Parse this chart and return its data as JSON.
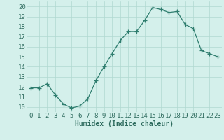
{
  "x": [
    0,
    1,
    2,
    3,
    4,
    5,
    6,
    7,
    8,
    9,
    10,
    11,
    12,
    13,
    14,
    15,
    16,
    17,
    18,
    19,
    20,
    21,
    22,
    23
  ],
  "y": [
    11.9,
    11.9,
    12.3,
    11.2,
    10.3,
    9.9,
    10.1,
    10.8,
    12.6,
    14.0,
    15.3,
    16.6,
    17.5,
    17.5,
    18.6,
    19.9,
    19.7,
    19.4,
    19.5,
    18.2,
    17.8,
    15.6,
    15.3,
    15.0
  ],
  "line_color": "#2e7d6e",
  "marker": "+",
  "marker_size": 4,
  "xlabel": "Humidex (Indice chaleur)",
  "xlim": [
    -0.5,
    23.5
  ],
  "ylim": [
    9.5,
    20.5
  ],
  "yticks": [
    10,
    11,
    12,
    13,
    14,
    15,
    16,
    17,
    18,
    19,
    20
  ],
  "xticks": [
    0,
    1,
    2,
    3,
    4,
    5,
    6,
    7,
    8,
    9,
    10,
    11,
    12,
    13,
    14,
    15,
    16,
    17,
    18,
    19,
    20,
    21,
    22,
    23
  ],
  "xtick_labels": [
    "0",
    "1",
    "2",
    "3",
    "4",
    "5",
    "6",
    "7",
    "8",
    "9",
    "10",
    "11",
    "12",
    "13",
    "14",
    "15",
    "16",
    "17",
    "18",
    "19",
    "20",
    "21",
    "22",
    "23"
  ],
  "bg_color": "#d4f0eb",
  "grid_color": "#b0d8d0",
  "xlabel_fontsize": 7,
  "tick_fontsize": 6.5,
  "tick_color": "#2e6b5e",
  "xlabel_color": "#2e6b5e"
}
